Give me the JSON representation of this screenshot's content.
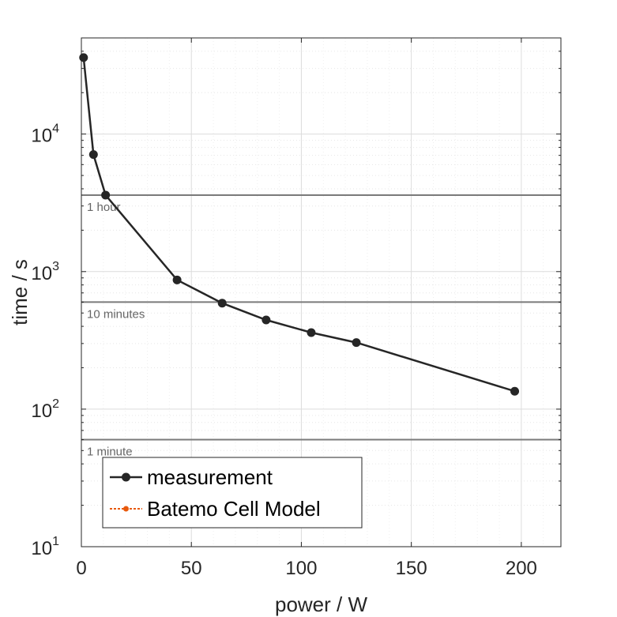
{
  "chart_data": {
    "type": "line",
    "xlabel": "power / W",
    "ylabel": "time / s",
    "xlim": [
      0,
      218
    ],
    "ylim": [
      10,
      50000
    ],
    "yscale": "log",
    "grid": true,
    "x_ticks": [
      "0",
      "50",
      "100",
      "150",
      "200"
    ],
    "y_ticks": [
      {
        "base": "10",
        "exp": "1"
      },
      {
        "base": "10",
        "exp": "2"
      },
      {
        "base": "10",
        "exp": "3"
      },
      {
        "base": "10",
        "exp": "4"
      }
    ],
    "reference_lines": [
      {
        "label": "1 hour",
        "y": 3600
      },
      {
        "label": "10 minutes",
        "y": 600
      },
      {
        "label": "1 minute",
        "y": 60
      }
    ],
    "legend_position": "bottom-left",
    "series": [
      {
        "name": "measurement",
        "color": "#262626",
        "x": [
          1,
          5.5,
          11,
          43.5,
          64,
          84,
          104.5,
          125,
          197
        ],
        "y": [
          36000,
          7100,
          3600,
          870,
          590,
          445,
          360,
          305,
          135
        ]
      },
      {
        "name": "Batemo Cell Model",
        "color": "#e8590c",
        "x": [],
        "y": []
      }
    ]
  }
}
